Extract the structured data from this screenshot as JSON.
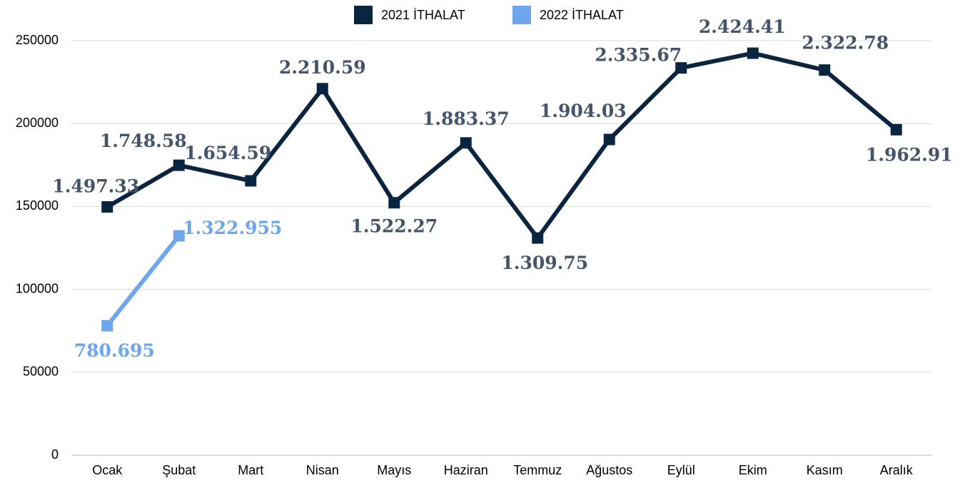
{
  "chart_data": {
    "type": "line",
    "categories": [
      "Ocak",
      "Şubat",
      "Mart",
      "Nisan",
      "Mayıs",
      "Haziran",
      "Temmuz",
      "Ağustos",
      "Eylül",
      "Ekim",
      "Kasım",
      "Aralık"
    ],
    "series": [
      {
        "name": "2021 İTHALAT",
        "color": "#0b2540",
        "label_color": "#44546a",
        "values": [
          149733,
          174858,
          165459,
          221059,
          152227,
          188337,
          130975,
          190403,
          233567,
          242441,
          232278,
          196291
        ],
        "value_labels": [
          "1.497.33",
          "1.748.58",
          "1.654.59",
          "2.210.59",
          "1.522.27",
          "1.883.37",
          "1.309.75",
          "1.904.03",
          "2.335.67",
          "2.424.41",
          "2.322.78",
          "1.962.91"
        ]
      },
      {
        "name": "2022 İTHALAT",
        "color": "#6ea6ee",
        "label_color": "#6ea6ee",
        "values": [
          78069.5,
          132295.5,
          null,
          null,
          null,
          null,
          null,
          null,
          null,
          null,
          null,
          null
        ],
        "value_labels": [
          "780.695",
          "1.322.955",
          null,
          null,
          null,
          null,
          null,
          null,
          null,
          null,
          null,
          null
        ]
      }
    ],
    "ylim": [
      0,
      250000
    ],
    "yticks": [
      0,
      50000,
      100000,
      150000,
      200000,
      250000
    ],
    "grid": true,
    "legend": "top"
  }
}
